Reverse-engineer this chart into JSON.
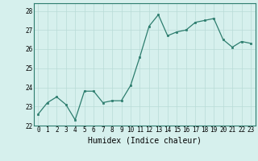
{
  "x": [
    0,
    1,
    2,
    3,
    4,
    5,
    6,
    7,
    8,
    9,
    10,
    11,
    12,
    13,
    14,
    15,
    16,
    17,
    18,
    19,
    20,
    21,
    22,
    23
  ],
  "y": [
    22.6,
    23.2,
    23.5,
    23.1,
    22.3,
    23.8,
    23.8,
    23.2,
    23.3,
    23.3,
    24.1,
    25.6,
    27.2,
    27.8,
    26.7,
    26.9,
    27.0,
    27.4,
    27.5,
    27.6,
    26.5,
    26.1,
    26.4,
    26.3
  ],
  "xlabel": "Humidex (Indice chaleur)",
  "ylim": [
    22,
    28.4
  ],
  "xlim": [
    -0.5,
    23.5
  ],
  "yticks": [
    22,
    23,
    24,
    25,
    26,
    27,
    28
  ],
  "xtick_labels": [
    "0",
    "1",
    "2",
    "3",
    "4",
    "5",
    "6",
    "7",
    "8",
    "9",
    "10",
    "11",
    "12",
    "13",
    "14",
    "15",
    "16",
    "17",
    "18",
    "19",
    "20",
    "21",
    "22",
    "23"
  ],
  "line_color": "#2d7d6e",
  "marker": "s",
  "marker_size": 2.0,
  "bg_color": "#d6f0ed",
  "grid_color": "#b8dbd7",
  "xlabel_fontsize": 7,
  "tick_fontsize": 5.5
}
